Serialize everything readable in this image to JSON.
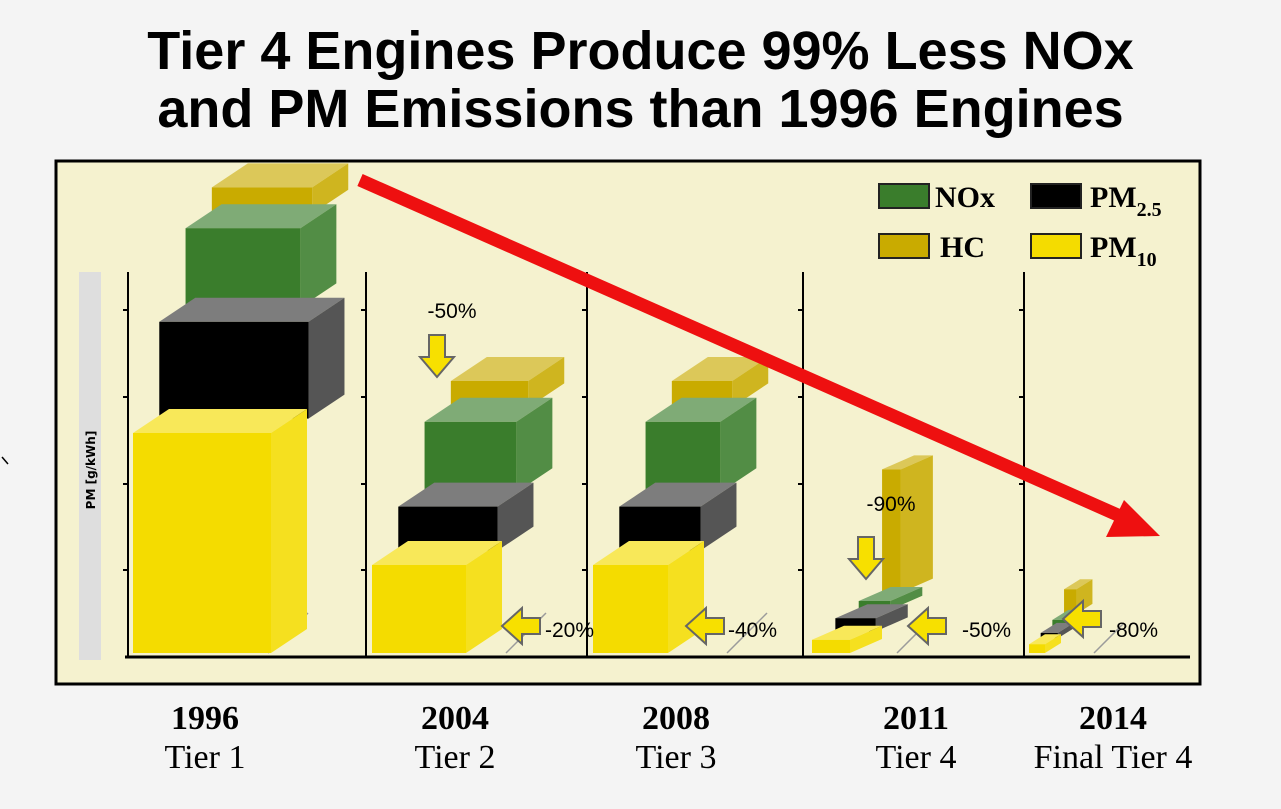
{
  "title_lines": [
    "Tier 4 Engines Produce 99% Less NOx",
    "and PM Emissions than 1996 Engines"
  ],
  "chart_data": {
    "type": "bar",
    "stacked_3d": true,
    "title": "Tier 4 Engines Produce 99% Less NOx and PM Emissions than 1996 Engines",
    "ylabel": "PM [g/kWh]",
    "categories": [
      {
        "year": "1996",
        "tier": "Tier 1"
      },
      {
        "year": "2004",
        "tier": "Tier 2"
      },
      {
        "year": "2008",
        "tier": "Tier 3"
      },
      {
        "year": "2011",
        "tier": "Tier 4"
      },
      {
        "year": "2014",
        "tier": "Final Tier 4"
      }
    ],
    "series": [
      {
        "name": "PM10",
        "legend": "PM",
        "sub": "10",
        "color": "#f4dc00",
        "values": [
          2.5,
          1.0,
          1.0,
          0.15,
          0.1
        ]
      },
      {
        "name": "PM2.5",
        "legend": "PM",
        "sub": "2.5",
        "color": "#000000",
        "values": [
          1.1,
          0.5,
          0.5,
          0.15,
          0.06
        ]
      },
      {
        "name": "NOx",
        "legend": "NOx",
        "sub": "",
        "color": "#3a7d2c",
        "values": [
          0.9,
          0.8,
          0.8,
          0.1,
          0.08
        ]
      },
      {
        "name": "HC",
        "legend": "HC",
        "sub": "",
        "color": "#c9ab00",
        "values": [
          0.3,
          0.3,
          0.3,
          1.4,
          0.28
        ]
      }
    ],
    "annotations": [
      {
        "category": "2004",
        "text": "-50%",
        "arrow": "down"
      },
      {
        "category": "2004",
        "text": "-20%",
        "arrow": "left"
      },
      {
        "category": "2008",
        "text": "-40%",
        "arrow": "left"
      },
      {
        "category": "2011",
        "text": "-90%",
        "arrow": "down"
      },
      {
        "category": "2011",
        "text": "-50%",
        "arrow": "left"
      },
      {
        "category": "2014",
        "text": "-80%",
        "arrow": "left"
      }
    ],
    "legend_position": "top-right",
    "trend_arrow": "decreasing"
  }
}
